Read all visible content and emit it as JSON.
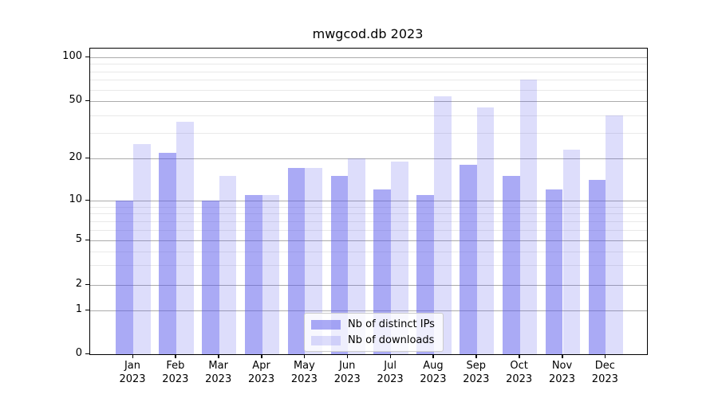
{
  "chart_data": {
    "type": "bar",
    "title": "mwgcod.db 2023",
    "categories": [
      "Jan",
      "Feb",
      "Mar",
      "Apr",
      "May",
      "Jun",
      "Jul",
      "Aug",
      "Sep",
      "Oct",
      "Nov",
      "Dec"
    ],
    "year_label": "2023",
    "series": [
      {
        "name": "Nb of distinct IPs",
        "color": "rgba(85,85,235,0.5)",
        "values": [
          10,
          22,
          10,
          11,
          17,
          15,
          12,
          11,
          18,
          15,
          12,
          14
        ]
      },
      {
        "name": "Nb of downloads",
        "color": "rgba(85,85,235,0.2)",
        "values": [
          25,
          36,
          15,
          11,
          17,
          20,
          19,
          54,
          45,
          70,
          23,
          40
        ]
      }
    ],
    "xlabel": "",
    "ylabel": "",
    "yscale": "log-with-zero",
    "ytick_labels": [
      0,
      1,
      2,
      5,
      10,
      20,
      50,
      100
    ],
    "minor_yticks": [
      3,
      4,
      6,
      7,
      8,
      9,
      30,
      40,
      60,
      70,
      80,
      90
    ],
    "ylim": [
      0,
      100
    ],
    "grid": "on",
    "legend_position": "lower center"
  },
  "colors": {
    "bar_distinct_ips": "rgba(85,85,235,0.5)",
    "bar_downloads": "rgba(85,85,235,0.2)",
    "major_grid": "#ababab",
    "minor_grid": "#e9e9e9",
    "spine": "#000000",
    "legend_border": "#cccccc"
  }
}
